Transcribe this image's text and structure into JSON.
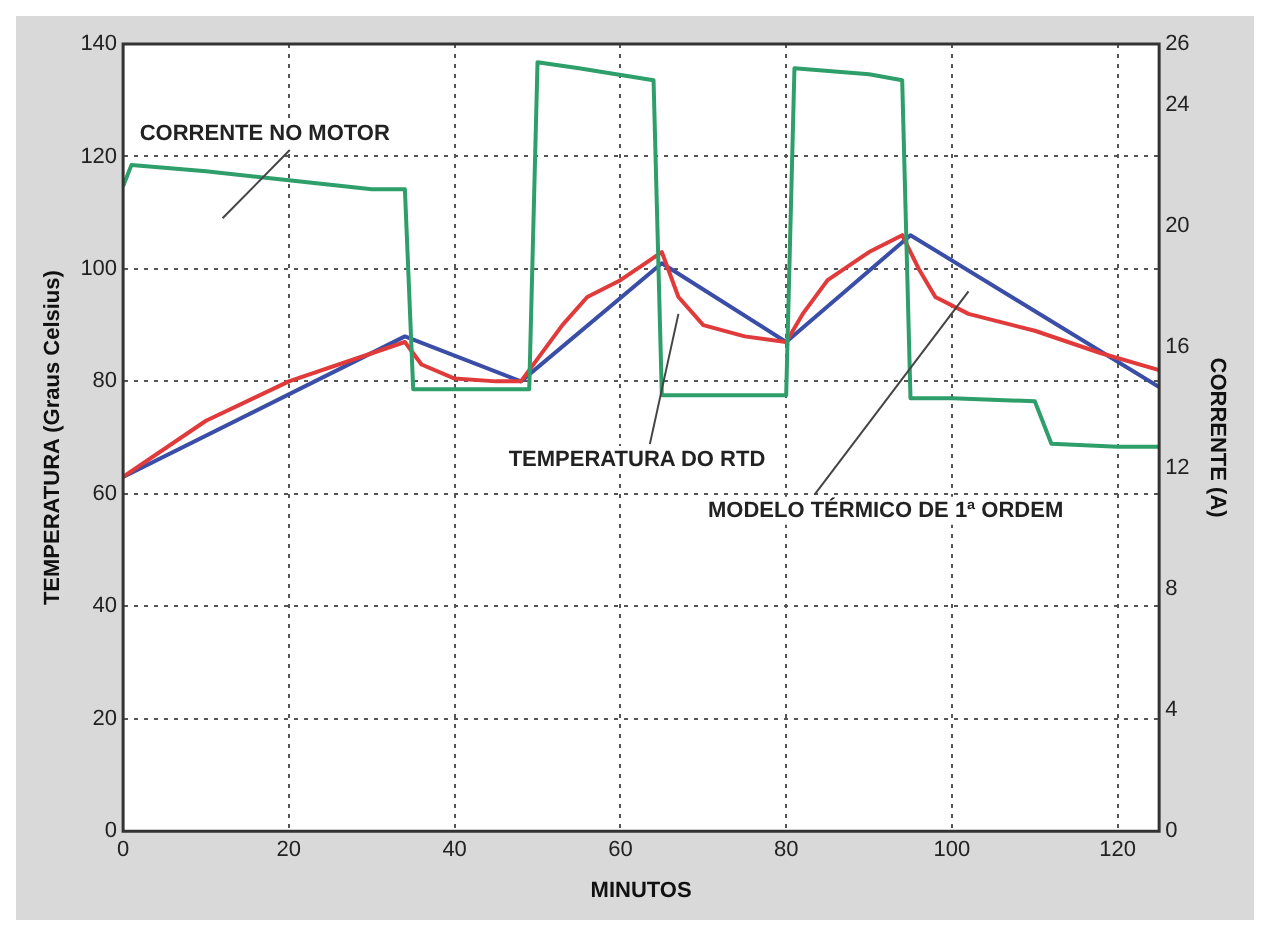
{
  "chart_data": {
    "type": "line",
    "xlabel": "MINUTOS",
    "ylabel": "TEMPERATURA (Graus Celsius)",
    "y2label": "CORRENTE (A)",
    "xlim": [
      0,
      125
    ],
    "xticks": [
      0,
      20,
      40,
      60,
      80,
      100,
      120
    ],
    "ylim": [
      0,
      140
    ],
    "yticks": [
      0,
      20,
      40,
      60,
      80,
      100,
      120,
      140
    ],
    "y2lim": [
      0,
      26
    ],
    "y2ticks": [
      0,
      4,
      8,
      12,
      16,
      20,
      24,
      26
    ],
    "grid": true,
    "legend": false,
    "line_style": "solid",
    "marker": "none",
    "series": [
      {
        "color": "#2e9e6a",
        "axis": "y2",
        "x": [
          0,
          1,
          10,
          20,
          30,
          34,
          35,
          40,
          49,
          50,
          55,
          64,
          65,
          70,
          80,
          81,
          90,
          94,
          95,
          100,
          110,
          112,
          120,
          125
        ],
        "values": [
          21.3,
          22,
          21.8,
          21.5,
          21.2,
          21.2,
          14.6,
          14.6,
          14.6,
          25.4,
          25.2,
          24.8,
          14.4,
          14.4,
          14.4,
          25.2,
          25,
          24.8,
          14.3,
          14.3,
          14.2,
          12.8,
          12.7,
          12.7
        ]
      },
      {
        "color": "#e03a3a",
        "x": [
          0,
          10,
          20,
          30,
          34,
          36,
          40,
          45,
          48,
          50,
          53,
          56,
          60,
          63,
          65,
          67,
          70,
          75,
          80,
          82,
          85,
          90,
          94,
          96,
          98,
          102,
          110,
          118,
          125
        ],
        "values": [
          63,
          73,
          80,
          85,
          87,
          83,
          80.5,
          80,
          80,
          84,
          90,
          95,
          98,
          101,
          103,
          95,
          90,
          88,
          87,
          92,
          98,
          103,
          106,
          100,
          95,
          92,
          89,
          85,
          82
        ]
      },
      {
        "color": "#3a4ea8",
        "x": [
          0,
          34,
          48,
          65,
          80,
          95,
          125
        ],
        "values": [
          63,
          88,
          80,
          101,
          87,
          106,
          79
        ]
      }
    ],
    "annotations": [
      "CORRENTE NO MOTOR",
      "TEMPERATURA DO RTD",
      "MODELO TÉRMICO DE 1ª ORDEM"
    ]
  }
}
